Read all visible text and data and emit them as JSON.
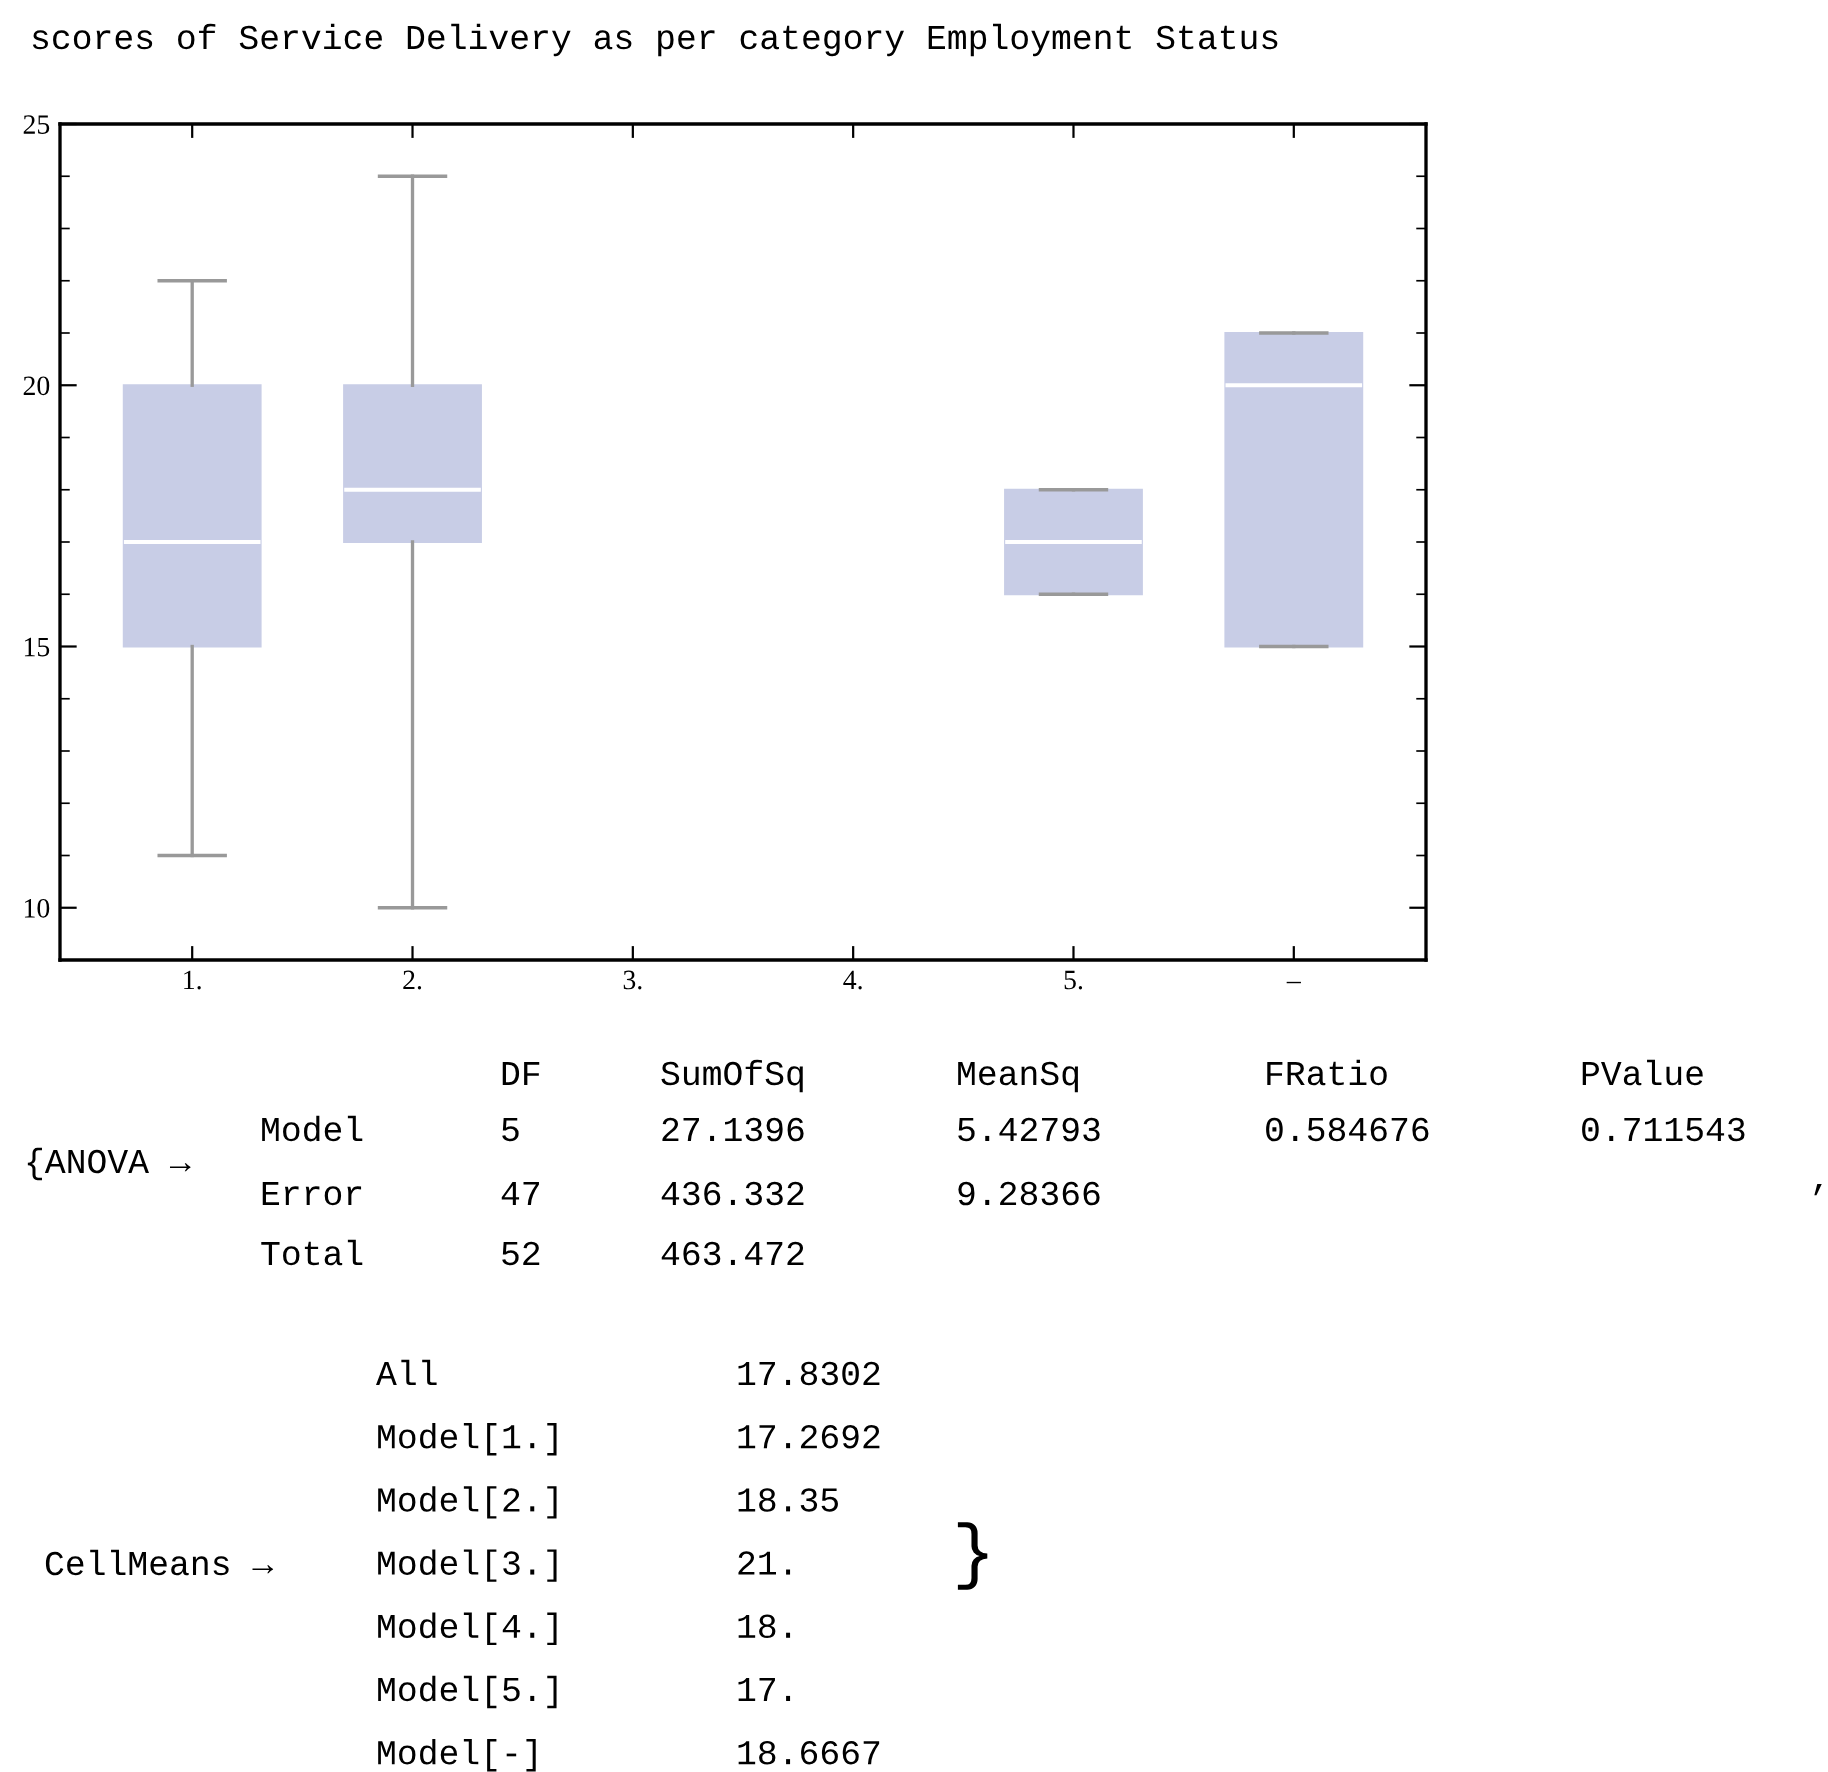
{
  "chart_data": {
    "type": "box",
    "title": "scores of Service Delivery as per category Employment Status",
    "categories": [
      "1.",
      "2.",
      "3.",
      "4.",
      "5.",
      "–"
    ],
    "color": "#c8cde6",
    "boxes": [
      {
        "low": 11,
        "q1": 15,
        "median": 17,
        "q3": 20,
        "high": 22
      },
      {
        "low": 10,
        "q1": 17,
        "median": 18,
        "q3": 20,
        "high": 24
      },
      null,
      null,
      {
        "low": 16,
        "q1": 16,
        "median": 17,
        "q3": 18,
        "high": 18
      },
      {
        "low": 15,
        "q1": 15,
        "median": 20,
        "q3": 21,
        "high": 21
      }
    ],
    "ylim": [
      9,
      25
    ],
    "yticks": [
      10,
      15,
      20,
      25
    ],
    "grid": false,
    "annotations": [
      "DF",
      "SumOfSq",
      "MeanSq",
      "FRatio",
      "PValue",
      "Model",
      "5",
      "27.1396",
      "5.42793",
      "0.584676",
      "0.711543",
      "Error",
      "47",
      "436.332",
      "9.28366",
      "Total",
      "52",
      "463.472",
      "{ANOVA →",
      ",",
      "All",
      "17.8302",
      "Model[1.]",
      "17.2692",
      "Model[2.]",
      "18.35",
      "Model[3.]",
      "21.",
      "Model[4.]",
      "18.",
      "Model[5.]",
      "17.",
      "Model[-]",
      "18.6667",
      "CellMeans →",
      "}"
    ]
  }
}
